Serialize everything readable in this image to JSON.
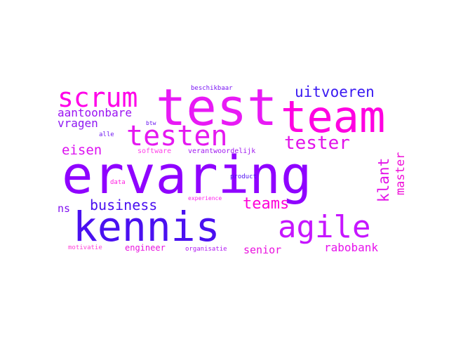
{
  "words": [
    {
      "text": "ervaring",
      "color": "#8f02ff"
    },
    {
      "text": "test",
      "color": "#e81af5"
    },
    {
      "text": "team",
      "color": "#ff00e1"
    },
    {
      "text": "kennis",
      "color": "#4a10f0"
    },
    {
      "text": "agile",
      "color": "#c616ff"
    },
    {
      "text": "testen",
      "color": "#e418f0"
    },
    {
      "text": "scrum",
      "color": "#ff00e8"
    },
    {
      "text": "tester",
      "color": "#e211ea"
    },
    {
      "text": "uitvoeren",
      "color": "#3a1af2"
    },
    {
      "text": "business",
      "color": "#4a10f0"
    },
    {
      "text": "teams",
      "color": "#ff00d8"
    },
    {
      "text": "eisen",
      "color": "#dc10f0"
    },
    {
      "text": "klant",
      "color": "#e212e8"
    },
    {
      "text": "master",
      "color": "#ef10d8"
    },
    {
      "text": "aantoonbare",
      "color": "#9b12f2"
    },
    {
      "text": "vragen",
      "color": "#8e18f2"
    },
    {
      "text": "rabobank",
      "color": "#e612ec"
    },
    {
      "text": "senior",
      "color": "#e912de"
    },
    {
      "text": "ns",
      "color": "#8010f0"
    },
    {
      "text": "engineer",
      "color": "#e812de"
    },
    {
      "text": "software",
      "color": "#ff40e8"
    },
    {
      "text": "verantwoordelijk",
      "color": "#a018f0"
    },
    {
      "text": "beschikbaar",
      "color": "#7a14f4"
    },
    {
      "text": "organisatie",
      "color": "#b016f2"
    },
    {
      "text": "motivatie",
      "color": "#ff40d8"
    },
    {
      "text": "product",
      "color": "#5010f2"
    },
    {
      "text": "experience",
      "color": "#ff20ec"
    },
    {
      "text": "data",
      "color": "#ff20e0"
    },
    {
      "text": "alle",
      "color": "#7018f2"
    },
    {
      "text": "btw",
      "color": "#6a16f2"
    }
  ]
}
